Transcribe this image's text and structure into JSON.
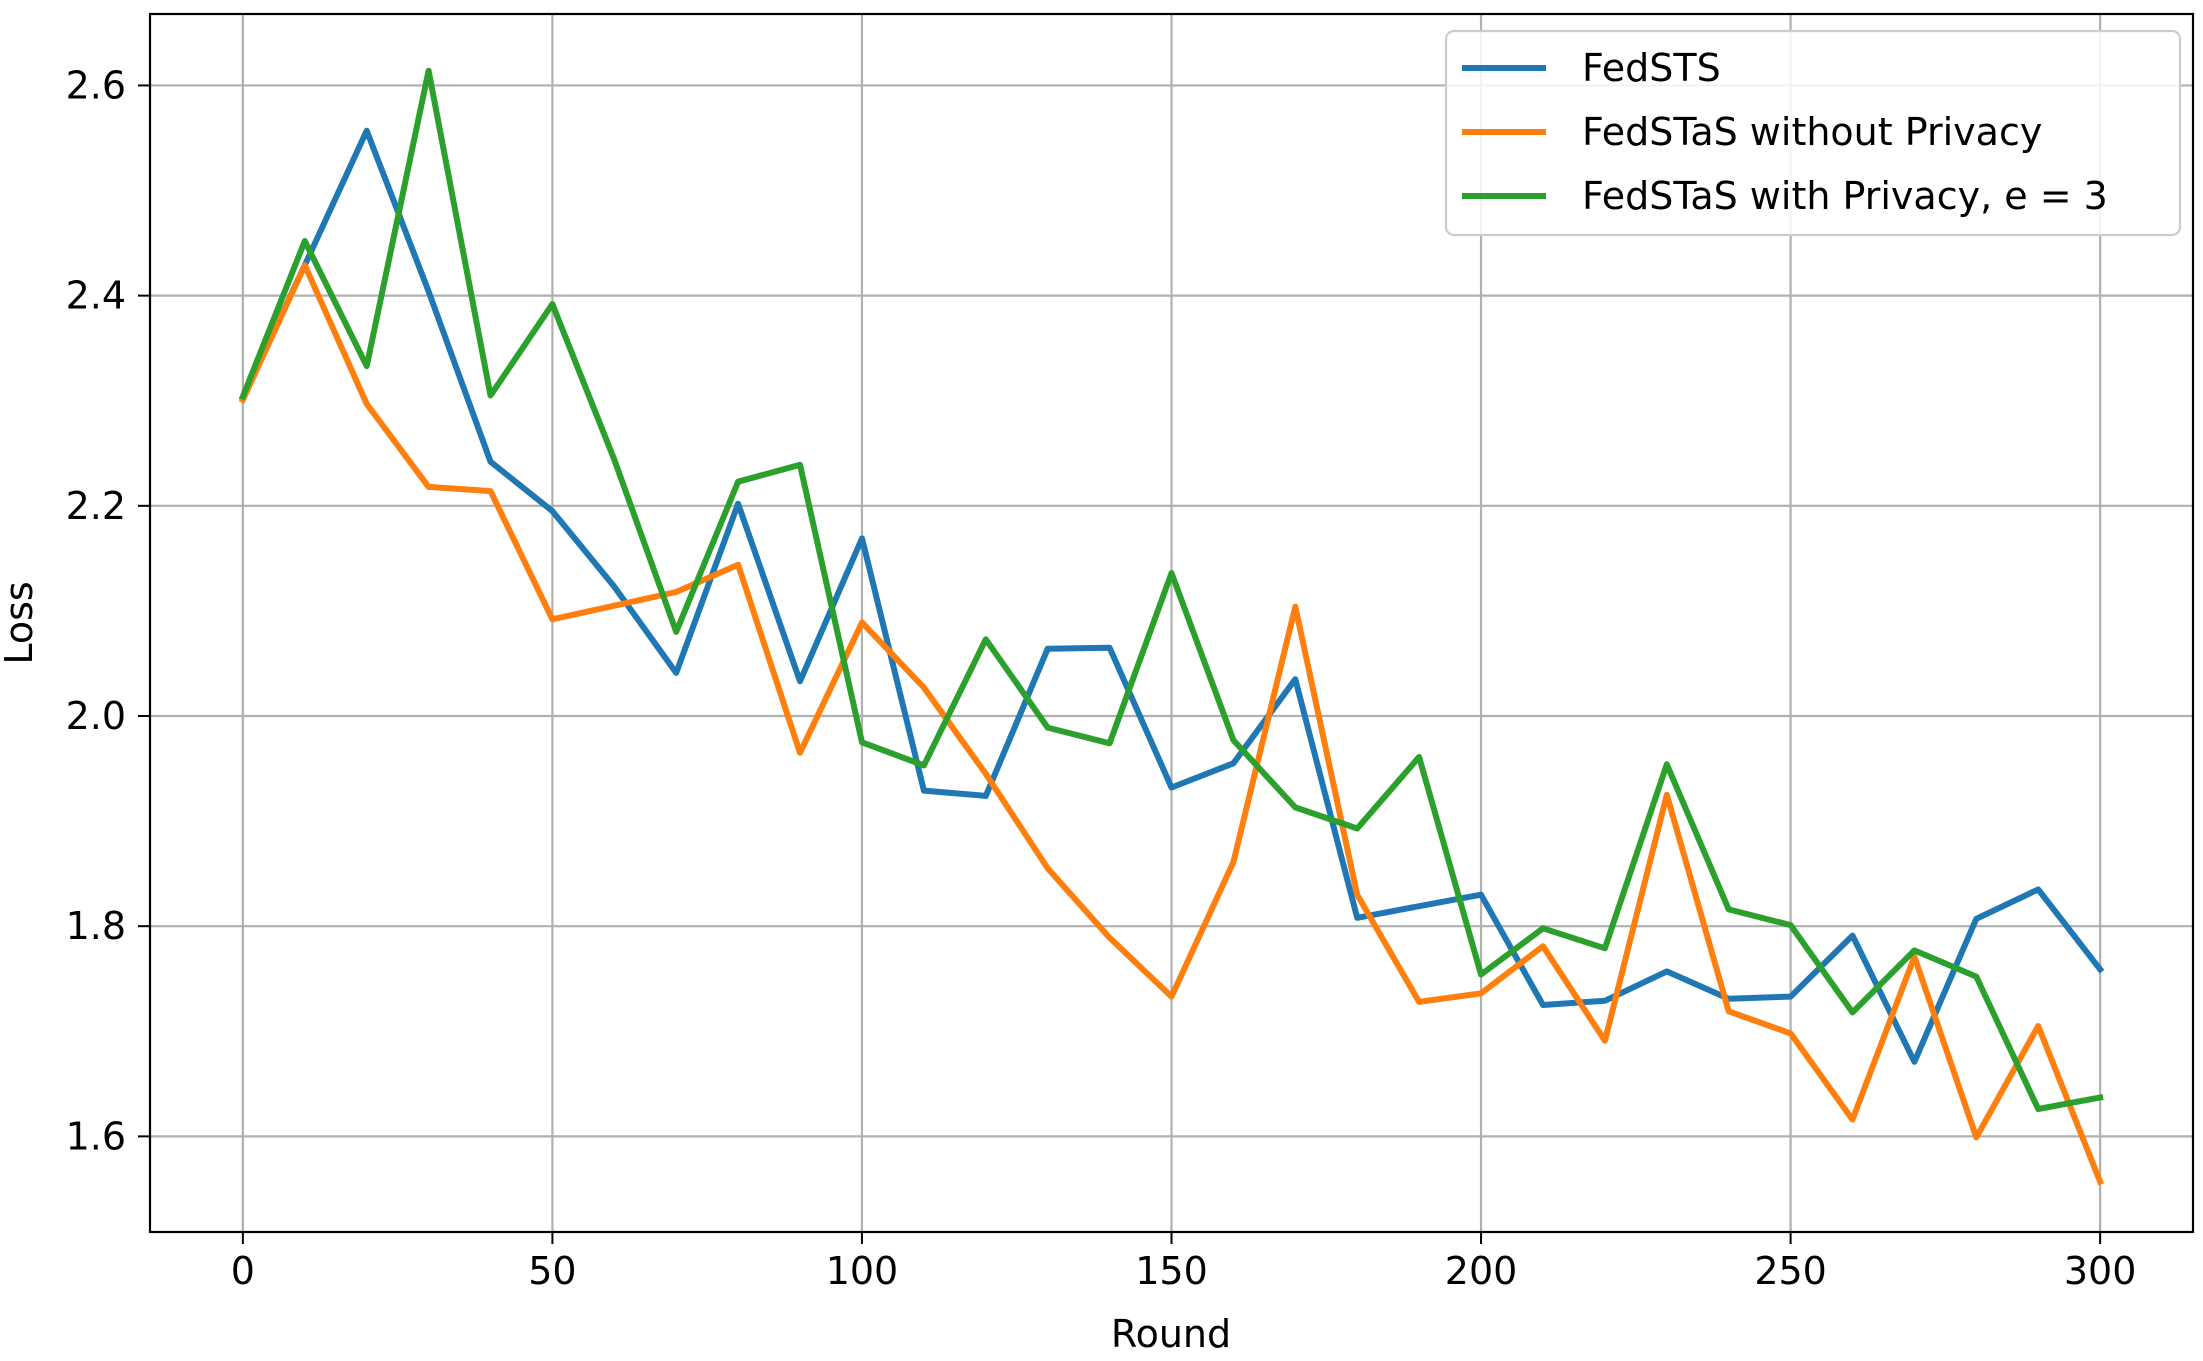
{
  "chart_data": {
    "type": "line",
    "title": "",
    "xlabel": "Round",
    "ylabel": "Loss",
    "xlim": [
      -15,
      315
    ],
    "ylim": [
      1.509,
      2.668
    ],
    "xticks": [
      0,
      50,
      100,
      150,
      200,
      250,
      300
    ],
    "xtick_labels": [
      "0",
      "50",
      "100",
      "150",
      "200",
      "250",
      "300"
    ],
    "yticks": [
      1.6,
      1.8,
      2.0,
      2.2,
      2.4,
      2.6
    ],
    "ytick_labels": [
      "1.6",
      "1.8",
      "2.0",
      "2.2",
      "2.4",
      "2.6"
    ],
    "grid": true,
    "legend_position": "top-right",
    "x": [
      0,
      10,
      20,
      30,
      40,
      50,
      60,
      70,
      80,
      90,
      100,
      110,
      120,
      130,
      140,
      150,
      160,
      170,
      180,
      190,
      200,
      210,
      220,
      230,
      240,
      250,
      260,
      270,
      280,
      290,
      300
    ],
    "series": [
      {
        "name": "FedSTS",
        "color": "#1f77b4",
        "values": [
          2.303,
          2.429,
          2.557,
          2.404,
          2.242,
          2.195,
          2.123,
          2.041,
          2.202,
          2.033,
          2.169,
          1.929,
          1.924,
          2.064,
          2.065,
          1.932,
          1.955,
          2.035,
          1.808,
          1.819,
          1.83,
          1.725,
          1.729,
          1.757,
          1.731,
          1.733,
          1.791,
          1.671,
          1.807,
          1.835,
          1.759
        ]
      },
      {
        "name": "FedSTaS without Privacy",
        "color": "#ff7f0e",
        "values": [
          2.301,
          2.429,
          2.297,
          2.218,
          2.214,
          2.092,
          2.105,
          2.118,
          2.144,
          1.965,
          2.089,
          2.027,
          1.945,
          1.855,
          1.789,
          1.733,
          1.861,
          2.104,
          1.83,
          1.728,
          1.736,
          1.781,
          1.691,
          1.925,
          1.719,
          1.698,
          1.616,
          1.771,
          1.599,
          1.705,
          1.557
        ]
      },
      {
        "name": "FedSTaS with Privacy, e = 3",
        "color": "#2ca02c",
        "values": [
          2.304,
          2.452,
          2.333,
          2.614,
          2.305,
          2.392,
          2.244,
          2.08,
          2.223,
          2.239,
          1.975,
          1.953,
          2.073,
          1.989,
          1.974,
          2.136,
          1.977,
          1.913,
          1.893,
          1.961,
          1.754,
          1.798,
          1.779,
          1.954,
          1.816,
          1.801,
          1.718,
          1.777,
          1.752,
          1.626,
          1.637
        ]
      }
    ]
  }
}
